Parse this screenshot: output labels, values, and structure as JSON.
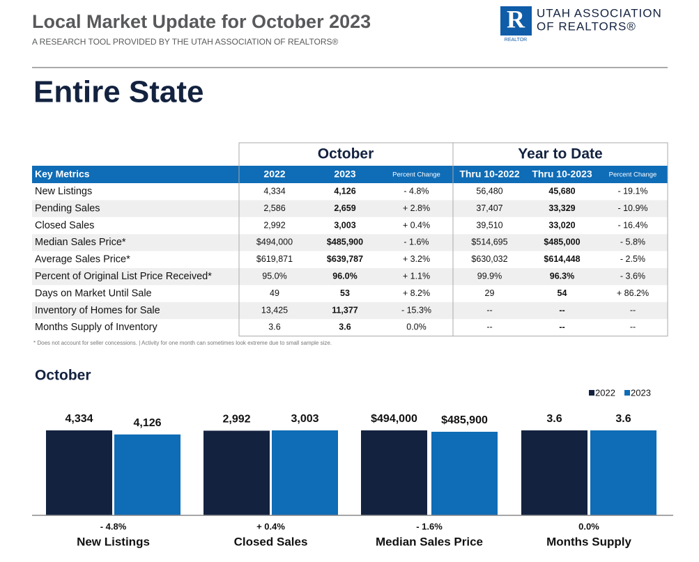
{
  "header": {
    "title": "Local Market Update for October 2023",
    "subtitle": "A RESEARCH TOOL PROVIDED BY THE UTAH ASSOCIATION OF REALTORS®",
    "logo_line1": "UTAH ASSOCIATION",
    "logo_line2": "OF REALTORS®",
    "logo_mark": "REALTOR"
  },
  "area": "Entire State",
  "table": {
    "group_headers": [
      "October",
      "Year to Date"
    ],
    "columns": [
      "Key Metrics",
      "2022",
      "2023",
      "Percent Change",
      "Thru 10-2022",
      "Thru 10-2023",
      "Percent Change"
    ],
    "rows": [
      [
        "New Listings",
        "4,334",
        "4,126",
        "- 4.8%",
        "56,480",
        "45,680",
        "- 19.1%"
      ],
      [
        "Pending Sales",
        "2,586",
        "2,659",
        "+ 2.8%",
        "37,407",
        "33,329",
        "- 10.9%"
      ],
      [
        "Closed Sales",
        "2,992",
        "3,003",
        "+ 0.4%",
        "39,510",
        "33,020",
        "- 16.4%"
      ],
      [
        "Median Sales Price*",
        "$494,000",
        "$485,900",
        "- 1.6%",
        "$514,695",
        "$485,000",
        "- 5.8%"
      ],
      [
        "Average Sales Price*",
        "$619,871",
        "$639,787",
        "+ 3.2%",
        "$630,032",
        "$614,448",
        "- 2.5%"
      ],
      [
        "Percent of Original List Price Received*",
        "95.0%",
        "96.0%",
        "+ 1.1%",
        "99.9%",
        "96.3%",
        "- 3.6%"
      ],
      [
        "Days on Market Until Sale",
        "49",
        "53",
        "+ 8.2%",
        "29",
        "54",
        "+ 86.2%"
      ],
      [
        "Inventory of Homes for Sale",
        "13,425",
        "11,377",
        "- 15.3%",
        "--",
        "--",
        "--"
      ],
      [
        "Months Supply of Inventory",
        "3.6",
        "3.6",
        "0.0%",
        "--",
        "--",
        "--"
      ]
    ]
  },
  "footnote": "* Does not account for seller concessions.  |  Activity for one month can sometimes look extreme due to small sample size.",
  "chart": {
    "title": "October",
    "series": [
      {
        "name": "2022",
        "color": "#13223f"
      },
      {
        "name": "2023",
        "color": "#0f6cb6"
      }
    ],
    "groups": [
      {
        "label": "New Listings",
        "values": [
          4334,
          4126
        ],
        "value_labels": [
          "4,334",
          "4,126"
        ],
        "change": "- 4.8%"
      },
      {
        "label": "Closed Sales",
        "values": [
          2992,
          3003
        ],
        "value_labels": [
          "2,992",
          "3,003"
        ],
        "change": "+ 0.4%"
      },
      {
        "label": "Median Sales Price",
        "values": [
          494000,
          485900
        ],
        "value_labels": [
          "$494,000",
          "$485,900"
        ],
        "change": "- 1.6%"
      },
      {
        "label": "Months Supply",
        "values": [
          3.6,
          3.6
        ],
        "value_labels": [
          "3.6",
          "3.6"
        ],
        "change": "0.0%"
      }
    ]
  }
}
